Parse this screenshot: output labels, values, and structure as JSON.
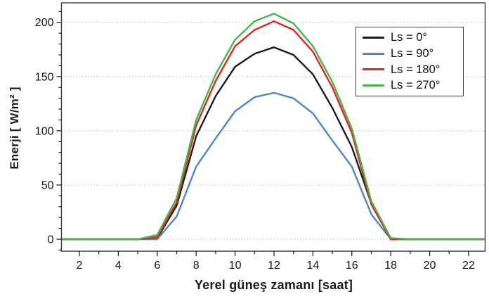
{
  "chart_data": {
    "type": "line",
    "title": "",
    "xlabel": "Yerel güneş zamanı [saat]",
    "ylabel": "Enerji [ W/m² ]",
    "x": [
      1,
      2,
      3,
      4,
      5,
      6,
      7,
      8,
      9,
      10,
      11,
      12,
      13,
      14,
      15,
      16,
      17,
      18,
      19,
      20,
      21,
      22,
      23
    ],
    "series": [
      {
        "label": "Ls = 0°",
        "color": "#1a1a1a",
        "values": [
          0,
          0,
          0,
          0,
          0,
          1,
          31,
          95,
          132,
          159,
          171,
          177,
          170,
          152,
          121,
          85,
          33,
          0,
          0,
          0,
          0,
          0,
          0
        ]
      },
      {
        "label": "Ls = 90°",
        "color": "#4b86c5",
        "values": [
          0,
          0,
          0,
          0,
          0,
          0,
          21,
          67,
          93,
          118,
          131,
          135,
          130,
          116,
          91,
          67,
          23,
          0,
          0,
          0,
          0,
          0,
          0
        ]
      },
      {
        "label": "Ls = 180°",
        "color": "#e0251f",
        "values": [
          0,
          0,
          0,
          0,
          0,
          2,
          34,
          105,
          146,
          178,
          193,
          201,
          193,
          173,
          140,
          98,
          32,
          0,
          0,
          0,
          0,
          0,
          0
        ]
      },
      {
        "label": "Ls = 270°",
        "color": "#45b64a",
        "values": [
          0,
          0,
          0,
          0,
          0,
          4,
          38,
          110,
          152,
          184,
          201,
          208,
          199,
          178,
          145,
          102,
          35,
          1,
          0,
          0,
          0,
          0,
          0
        ]
      }
    ],
    "xticks": [
      2,
      4,
      6,
      8,
      10,
      12,
      14,
      16,
      18,
      20,
      22
    ],
    "yticks": [
      0,
      50,
      100,
      150,
      200
    ],
    "xticks_minor_step": 1,
    "yticks_minor_step": 10,
    "xlim": [
      1.08,
      22.85
    ],
    "ylim": [
      -11,
      218
    ],
    "grid": "horizontal dotted lines at y major ticks",
    "grid_color": "#9c9c9c",
    "legend_position": "upper right"
  }
}
